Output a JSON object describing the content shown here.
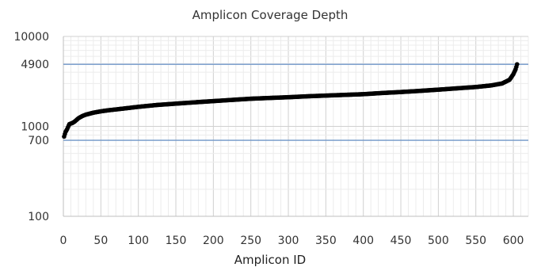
{
  "chart_data": {
    "type": "scatter",
    "title": "Amplicon Coverage Depth",
    "xlabel": "Amplicon ID",
    "ylabel": "",
    "xlim": [
      0,
      620
    ],
    "ylim": [
      100,
      10000
    ],
    "y_scale": "log",
    "x_ticks": [
      0,
      50,
      100,
      150,
      200,
      250,
      300,
      350,
      400,
      450,
      500,
      550,
      600
    ],
    "y_ticks": [
      100,
      700,
      1000,
      4900,
      10000
    ],
    "reference_lines": [
      {
        "y": 4900,
        "color": "#6f96c8"
      },
      {
        "y": 700,
        "color": "#6f96c8"
      }
    ],
    "grid": true,
    "marker_color": "#000000",
    "series": [
      {
        "points": [
          [
            1,
            770
          ],
          [
            2,
            820
          ],
          [
            3,
            870
          ],
          [
            5,
            930
          ],
          [
            8,
            1060
          ],
          [
            12,
            1090
          ],
          [
            15,
            1130
          ],
          [
            20,
            1230
          ],
          [
            25,
            1300
          ],
          [
            30,
            1350
          ],
          [
            40,
            1420
          ],
          [
            50,
            1470
          ],
          [
            60,
            1510
          ],
          [
            75,
            1560
          ],
          [
            100,
            1650
          ],
          [
            125,
            1730
          ],
          [
            150,
            1790
          ],
          [
            175,
            1850
          ],
          [
            200,
            1910
          ],
          [
            225,
            1970
          ],
          [
            250,
            2030
          ],
          [
            275,
            2070
          ],
          [
            300,
            2110
          ],
          [
            325,
            2160
          ],
          [
            350,
            2200
          ],
          [
            375,
            2240
          ],
          [
            400,
            2280
          ],
          [
            425,
            2350
          ],
          [
            450,
            2410
          ],
          [
            475,
            2480
          ],
          [
            500,
            2560
          ],
          [
            525,
            2650
          ],
          [
            550,
            2740
          ],
          [
            570,
            2850
          ],
          [
            585,
            3000
          ],
          [
            595,
            3300
          ],
          [
            600,
            3800
          ],
          [
            603,
            4300
          ],
          [
            605,
            4900
          ]
        ]
      }
    ]
  }
}
